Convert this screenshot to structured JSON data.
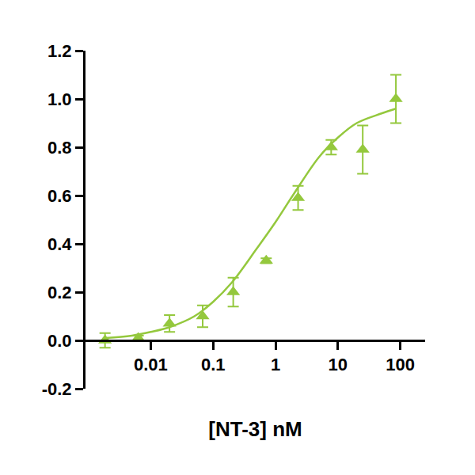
{
  "chart_data": {
    "type": "scatter",
    "x_label": "[NT-3] nM",
    "color": "#94c83d",
    "log": "x",
    "grid": false,
    "xlim": [
      0.0009,
      250
    ],
    "xticks": [
      0.01,
      0.1,
      1,
      10,
      100
    ],
    "ylim": [
      -0.2,
      1.2
    ],
    "yticks": [
      -0.2,
      {
        "value": 0,
        "label": "0.0"
      },
      0.2,
      0.4,
      0.6,
      0.8,
      {
        "value": 1,
        "label": "1.0"
      },
      1.2
    ],
    "series": [
      {
        "type": "scatter",
        "marker": "triangle-up",
        "x": [
          0.00185,
          0.0063,
          0.02,
          0.068,
          0.21,
          0.71,
          2.3,
          7.8,
          25,
          85
        ],
        "values": [
          0.0,
          0.01,
          0.07,
          0.1,
          0.2,
          0.33,
          0.59,
          0.8,
          0.79,
          1.0
        ],
        "errors": [
          0.03,
          0.01,
          0.035,
          0.045,
          0.06,
          0.01,
          0.05,
          0.03,
          0.1,
          0.1
        ]
      },
      {
        "type": "line",
        "line_style": "solid",
        "x": [
          0.00185,
          0.005,
          0.01,
          0.02,
          0.05,
          0.1,
          0.2,
          0.5,
          1,
          2,
          5,
          10,
          20,
          50,
          85
        ],
        "values": [
          0.01,
          0.02,
          0.035,
          0.055,
          0.1,
          0.16,
          0.24,
          0.38,
          0.49,
          0.61,
          0.76,
          0.84,
          0.9,
          0.94,
          0.96
        ]
      }
    ]
  }
}
